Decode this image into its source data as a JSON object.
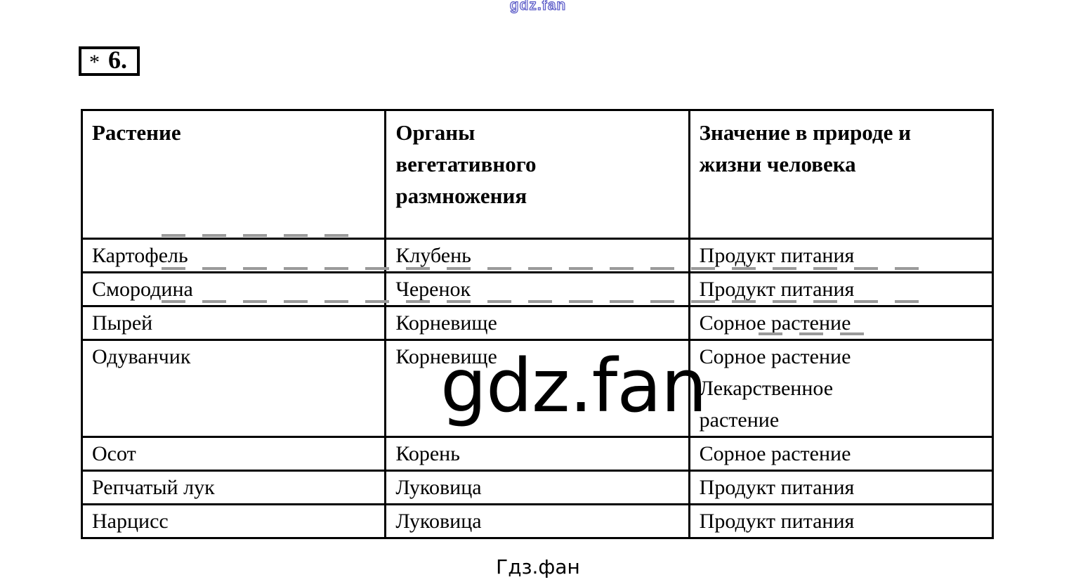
{
  "colors": {
    "top_watermark_blue": "#4a4ac0",
    "table_border": "#000000",
    "dash_gray": "#9a9a9a",
    "text": "#000000",
    "background": "#ffffff"
  },
  "header": {
    "top_watermark": "gdz.fan"
  },
  "question_box": {
    "asterisk": "*",
    "number": "6."
  },
  "table": {
    "headers": [
      "Растение",
      "Органы\nвегетативного\nразмножения",
      "Значение в природе и\nжизни человека"
    ],
    "rows": [
      {
        "plant": "Картофель",
        "organ": "Клубень",
        "significance": "Продукт питания"
      },
      {
        "plant": "Смородина",
        "organ": "Черенок",
        "significance": "Продукт питания"
      },
      {
        "plant": "Пырей",
        "organ": "Корневище",
        "significance": "Сорное растение"
      },
      {
        "plant": "Одуванчик",
        "organ": "Корневище",
        "significance": "Сорное растение\nЛекарственное\nрастение"
      },
      {
        "plant": "Осот",
        "organ": "Корень",
        "significance": "Сорное растение"
      },
      {
        "plant": "Репчатый лук",
        "organ": "Луковица",
        "significance": "Продукт питания"
      },
      {
        "plant": "Нарцисс",
        "organ": "Луковица",
        "significance": "Продукт питания"
      }
    ]
  },
  "watermark": {
    "center_text": "gdz.fan"
  },
  "footer": {
    "site_name": "Гдз.фан"
  }
}
